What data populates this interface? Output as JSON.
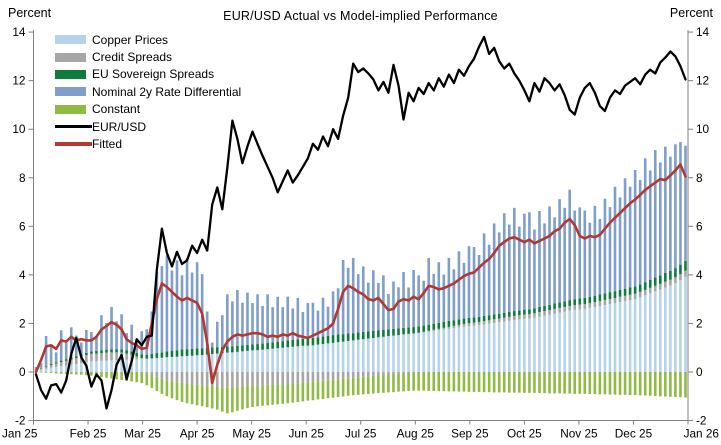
{
  "page": {
    "unit_label_left": "Percent",
    "unit_label_right": "Percent"
  },
  "chart_data": {
    "type": "bar",
    "subtype": "stacked-contribution-bars-with-line-overlays",
    "title": "EUR/USD Actual vs Model-implied Performance",
    "grid": false,
    "background": "#ffffff",
    "axis_color": "#808080",
    "y_axis": {
      "label": "Percent",
      "min": -2,
      "max": 14,
      "ticks": [
        14,
        12,
        10,
        8,
        6,
        4,
        2,
        0,
        -2
      ],
      "mirrored_right": true
    },
    "x_axis": {
      "tick_labels": [
        "Jan 25",
        "Feb 25",
        "Mar 25",
        "Apr 25",
        "May 25",
        "Jun 25",
        "Jul 25",
        "Aug 25",
        "Sep 25",
        "Oct 25",
        "Nov 25",
        "Dec 25",
        "Jan 26"
      ]
    },
    "legend": {
      "position": "top-left-inside",
      "items": [
        {
          "label": "Copper Prices",
          "color": "#b5d3ea",
          "type": "bar"
        },
        {
          "label": "Credit Spreads",
          "color": "#a6a6a6",
          "type": "bar"
        },
        {
          "label": "EU Sovereign Spreads",
          "color": "#0f7b3c",
          "type": "bar"
        },
        {
          "label": "Nominal 2y Rate Differential",
          "color": "#7f9ec9",
          "type": "bar"
        },
        {
          "label": "Constant",
          "color": "#8fbb44",
          "type": "bar"
        },
        {
          "label": "EUR/USD",
          "color": "#000000",
          "type": "line"
        },
        {
          "label": "Fitted",
          "color": "#b23931",
          "type": "line"
        }
      ]
    },
    "bar_series": [
      {
        "name": "Copper Prices",
        "color": "#b5d3ea",
        "values": [
          0.05,
          0.1,
          0.14,
          0.18,
          0.21,
          0.24,
          0.27,
          0.3,
          0.33,
          0.37,
          0.41,
          0.45,
          0.45,
          0.46,
          0.47,
          0.48,
          0.49,
          0.5,
          0.5,
          0.51,
          0.52,
          0.54,
          0.55,
          0.56,
          0.58,
          0.59,
          0.61,
          0.62,
          0.63,
          0.65,
          0.66,
          0.67,
          0.69,
          0.7,
          0.72,
          0.74,
          0.76,
          0.78,
          0.8,
          0.81,
          0.83,
          0.85,
          0.87,
          0.89,
          0.9,
          0.92,
          0.94,
          0.96,
          0.98,
          1.0,
          1.02,
          1.04,
          1.06,
          1.08,
          1.09,
          1.1,
          1.13,
          1.15,
          1.18,
          1.2,
          1.23,
          1.25,
          1.28,
          1.3,
          1.33,
          1.35,
          1.38,
          1.4,
          1.43,
          1.45,
          1.48,
          1.5,
          1.52,
          1.55,
          1.57,
          1.59,
          1.6,
          1.63,
          1.66,
          1.69,
          1.72,
          1.75,
          1.78,
          1.81,
          1.84,
          1.87,
          1.89,
          1.9,
          1.93,
          1.96,
          1.99,
          2.02,
          2.05,
          2.08,
          2.11,
          2.14,
          2.17,
          2.19,
          2.2,
          2.24,
          2.28,
          2.32,
          2.36,
          2.4,
          2.44,
          2.48,
          2.52,
          2.56,
          2.58,
          2.6,
          2.64,
          2.68,
          2.72,
          2.76,
          2.8,
          2.84,
          2.88,
          2.92,
          2.96,
          3.0,
          3.08,
          3.16,
          3.24,
          3.32,
          3.4,
          3.48,
          3.56,
          3.66,
          3.78,
          3.92
        ]
      },
      {
        "name": "Credit Spreads",
        "color": "#a6a6a6",
        "values": [
          0.02,
          0.05,
          0.08,
          0.11,
          0.14,
          0.17,
          0.19,
          0.22,
          0.24,
          0.26,
          0.28,
          0.3,
          0.31,
          0.32,
          0.33,
          0.33,
          0.32,
          0.3,
          0.26,
          0.2,
          0.12,
          0.04,
          -0.05,
          -0.12,
          -0.2,
          -0.28,
          -0.34,
          -0.38,
          -0.42,
          -0.45,
          -0.48,
          -0.5,
          -0.52,
          -0.54,
          -0.56,
          -0.58,
          -0.6,
          -0.63,
          -0.65,
          -0.64,
          -0.62,
          -0.6,
          -0.58,
          -0.56,
          -0.55,
          -0.54,
          -0.53,
          -0.52,
          -0.51,
          -0.5,
          -0.49,
          -0.47,
          -0.46,
          -0.44,
          -0.42,
          -0.4,
          -0.38,
          -0.36,
          -0.34,
          -0.32,
          -0.3,
          -0.28,
          -0.26,
          -0.24,
          -0.22,
          -0.2,
          -0.18,
          -0.16,
          -0.14,
          -0.12,
          -0.1,
          -0.08,
          -0.06,
          -0.04,
          -0.02,
          0.0,
          0.02,
          0.03,
          0.04,
          0.05,
          0.06,
          0.07,
          0.08,
          0.09,
          0.1,
          0.11,
          0.12,
          0.13,
          0.13,
          0.14,
          0.14,
          0.15,
          0.15,
          0.16,
          0.16,
          0.17,
          0.17,
          0.18,
          0.18,
          0.18,
          0.19,
          0.19,
          0.19,
          0.2,
          0.2,
          0.2,
          0.2,
          0.2,
          0.2,
          0.2,
          0.2,
          0.2,
          0.21,
          0.21,
          0.21,
          0.21,
          0.22,
          0.22,
          0.22,
          0.22,
          0.22,
          0.22,
          0.23,
          0.23,
          0.23,
          0.24,
          0.24,
          0.24,
          0.25,
          0.25
        ]
      },
      {
        "name": "EU Sovereign Spreads",
        "color": "#0f7b3c",
        "values": [
          0.01,
          0.02,
          0.03,
          0.04,
          0.05,
          0.06,
          0.07,
          0.08,
          0.08,
          0.09,
          0.1,
          0.1,
          0.11,
          0.11,
          0.12,
          0.12,
          0.13,
          0.13,
          0.14,
          0.14,
          0.15,
          0.15,
          0.16,
          0.18,
          0.2,
          0.22,
          0.24,
          0.26,
          0.27,
          0.28,
          0.28,
          0.28,
          0.28,
          0.28,
          0.27,
          0.27,
          0.26,
          0.26,
          0.25,
          0.25,
          0.25,
          0.25,
          0.25,
          0.25,
          0.25,
          0.25,
          0.26,
          0.26,
          0.27,
          0.27,
          0.28,
          0.28,
          0.29,
          0.29,
          0.3,
          0.3,
          0.3,
          0.31,
          0.31,
          0.32,
          0.32,
          0.31,
          0.31,
          0.3,
          0.3,
          0.3,
          0.3,
          0.29,
          0.29,
          0.28,
          0.28,
          0.28,
          0.27,
          0.27,
          0.26,
          0.26,
          0.26,
          0.25,
          0.25,
          0.25,
          0.24,
          0.24,
          0.24,
          0.23,
          0.23,
          0.22,
          0.22,
          0.22,
          0.21,
          0.21,
          0.21,
          0.2,
          0.2,
          0.2,
          0.2,
          0.2,
          0.2,
          0.2,
          0.2,
          0.2,
          0.21,
          0.21,
          0.22,
          0.22,
          0.23,
          0.23,
          0.24,
          0.24,
          0.25,
          0.25,
          0.26,
          0.26,
          0.27,
          0.27,
          0.28,
          0.28,
          0.29,
          0.29,
          0.3,
          0.3,
          0.31,
          0.32,
          0.33,
          0.34,
          0.35,
          0.36,
          0.37,
          0.38,
          0.39,
          0.4
        ]
      },
      {
        "name": "Nominal 2y Rate Differential",
        "color": "#7f9ec9",
        "values": [
          0.13,
          0.2,
          1.23,
          0.81,
          0.41,
          1.25,
          0.7,
          1.24,
          0.85,
          0.49,
          0.94,
          0.8,
          0.6,
          1.45,
          1.1,
          1.75,
          1.15,
          1.45,
          0.7,
          1.1,
          0.55,
          0.95,
          1.05,
          1.75,
          3.35,
          3.55,
          3.95,
          3.3,
          3.7,
          3.05,
          3.75,
          3.15,
          3.55,
          3.05,
          1.5,
          0.2,
          1.05,
          1.3,
          2.15,
          1.85,
          2.3,
          1.75,
          2.15,
          1.7,
          2.05,
          1.55,
          2.0,
          1.45,
          1.85,
          1.4,
          1.8,
          1.3,
          1.7,
          1.1,
          1.45,
          1.45,
          1.1,
          1.6,
          1.2,
          1.8,
          1.9,
          3.05,
          2.7,
          3.1,
          2.4,
          2.7,
          2.0,
          2.5,
          1.95,
          2.25,
          1.45,
          1.95,
          1.7,
          2.3,
          1.65,
          2.35,
          2.1,
          1.85,
          2.75,
          2.05,
          2.5,
          1.95,
          2.6,
          2.1,
          2.8,
          2.3,
          2.95,
          2.9,
          2.55,
          3.4,
          2.9,
          3.75,
          3.35,
          4.1,
          3.6,
          4.25,
          3.45,
          3.95,
          4.0,
          3.25,
          3.95,
          3.4,
          4.05,
          3.55,
          4.25,
          3.85,
          4.55,
          3.65,
          3.75,
          3.6,
          3.05,
          3.7,
          3.1,
          3.9,
          3.5,
          4.3,
          3.8,
          4.55,
          4.15,
          4.8,
          4.3,
          5.1,
          4.5,
          5.25,
          4.65,
          5.2,
          4.7,
          5.1,
          5.05,
          4.75
        ]
      },
      {
        "name": "Constant",
        "color": "#8fbb44",
        "values": [
          -0.01,
          -0.02,
          -0.03,
          -0.04,
          -0.06,
          -0.07,
          -0.08,
          -0.09,
          -0.1,
          -0.11,
          -0.13,
          -0.15,
          -0.18,
          -0.21,
          -0.24,
          -0.27,
          -0.3,
          -0.33,
          -0.36,
          -0.39,
          -0.42,
          -0.46,
          -0.5,
          -0.54,
          -0.58,
          -0.62,
          -0.66,
          -0.7,
          -0.74,
          -0.78,
          -0.81,
          -0.83,
          -0.85,
          -0.87,
          -0.89,
          -0.92,
          -0.95,
          -1.0,
          -1.05,
          -1.02,
          -0.98,
          -0.94,
          -0.9,
          -0.88,
          -0.86,
          -0.85,
          -0.84,
          -0.83,
          -0.82,
          -0.81,
          -0.8,
          -0.79,
          -0.78,
          -0.77,
          -0.76,
          -0.76,
          -0.75,
          -0.75,
          -0.74,
          -0.74,
          -0.73,
          -0.73,
          -0.72,
          -0.72,
          -0.72,
          -0.72,
          -0.72,
          -0.73,
          -0.73,
          -0.74,
          -0.74,
          -0.75,
          -0.75,
          -0.76,
          -0.76,
          -0.77,
          -0.77,
          -0.77,
          -0.78,
          -0.78,
          -0.79,
          -0.79,
          -0.8,
          -0.8,
          -0.81,
          -0.81,
          -0.82,
          -0.82,
          -0.82,
          -0.83,
          -0.83,
          -0.84,
          -0.84,
          -0.84,
          -0.85,
          -0.85,
          -0.85,
          -0.86,
          -0.86,
          -0.86,
          -0.87,
          -0.87,
          -0.88,
          -0.88,
          -0.88,
          -0.89,
          -0.89,
          -0.9,
          -0.9,
          -0.9,
          -0.91,
          -0.91,
          -0.92,
          -0.92,
          -0.93,
          -0.93,
          -0.94,
          -0.94,
          -0.95,
          -0.95,
          -0.96,
          -0.97,
          -0.98,
          -0.99,
          -1.0,
          -1.01,
          -1.02,
          -1.03,
          -1.04,
          -1.05
        ]
      }
    ],
    "line_series": [
      {
        "name": "Fitted",
        "color": "#b23931",
        "stroke_width": 2.6,
        "values": [
          0.0,
          0.5,
          1.05,
          1.1,
          0.95,
          1.3,
          1.25,
          1.45,
          1.3,
          1.35,
          1.3,
          1.3,
          1.45,
          1.75,
          1.9,
          2.05,
          1.95,
          1.75,
          1.35,
          1.2,
          1.1,
          0.95,
          1.0,
          2.0,
          3.0,
          3.65,
          3.5,
          3.3,
          3.1,
          2.95,
          3.05,
          2.95,
          2.85,
          2.4,
          1.2,
          -0.45,
          0.3,
          0.9,
          1.25,
          1.45,
          1.55,
          1.5,
          1.55,
          1.6,
          1.6,
          1.55,
          1.45,
          1.5,
          1.45,
          1.55,
          1.5,
          1.6,
          1.5,
          1.45,
          1.4,
          1.5,
          1.6,
          1.7,
          1.8,
          2.0,
          2.6,
          3.3,
          3.55,
          3.45,
          3.3,
          3.2,
          3.0,
          2.95,
          3.05,
          2.8,
          2.55,
          2.6,
          2.9,
          3.0,
          2.95,
          3.1,
          3.0,
          3.25,
          3.55,
          3.5,
          3.4,
          3.45,
          3.55,
          3.65,
          3.8,
          3.95,
          4.05,
          4.1,
          4.3,
          4.5,
          4.65,
          4.9,
          5.2,
          5.35,
          5.5,
          5.55,
          5.45,
          5.35,
          5.45,
          5.3,
          5.4,
          5.5,
          5.6,
          5.8,
          5.9,
          6.15,
          6.3,
          6.05,
          5.6,
          5.5,
          5.6,
          5.55,
          5.65,
          5.9,
          6.15,
          6.35,
          6.55,
          6.75,
          6.95,
          7.1,
          7.3,
          7.5,
          7.65,
          7.8,
          7.95,
          7.9,
          8.1,
          8.3,
          8.55,
          8.05
        ]
      },
      {
        "name": "EUR/USD",
        "color": "#000000",
        "stroke_width": 2.3,
        "values": [
          -0.1,
          -0.75,
          -1.1,
          -0.55,
          -0.5,
          -0.85,
          -0.35,
          0.75,
          1.4,
          0.6,
          0.25,
          -0.6,
          -0.1,
          -0.35,
          -1.5,
          -0.75,
          0.3,
          0.7,
          -0.3,
          0.45,
          1.35,
          1.1,
          1.45,
          1.5,
          4.2,
          5.9,
          4.9,
          4.35,
          4.95,
          4.45,
          4.6,
          5.2,
          4.9,
          5.45,
          5.0,
          6.9,
          7.6,
          6.7,
          8.4,
          10.35,
          9.6,
          8.6,
          9.3,
          9.9,
          9.4,
          8.9,
          8.45,
          8.0,
          7.4,
          7.85,
          8.3,
          7.8,
          8.1,
          8.45,
          8.8,
          9.4,
          9.15,
          9.7,
          9.3,
          10.0,
          9.6,
          10.55,
          11.3,
          12.7,
          12.35,
          12.5,
          12.3,
          12.05,
          11.6,
          11.95,
          11.5,
          12.65,
          11.8,
          10.4,
          11.5,
          11.15,
          11.7,
          11.45,
          11.9,
          11.6,
          12.1,
          11.75,
          12.25,
          11.9,
          12.45,
          12.2,
          12.6,
          12.9,
          13.4,
          13.8,
          13.1,
          13.35,
          12.8,
          12.5,
          12.7,
          12.3,
          12.0,
          11.6,
          11.15,
          11.9,
          11.55,
          12.1,
          11.9,
          11.6,
          11.85,
          11.4,
          10.8,
          10.6,
          11.3,
          11.7,
          11.9,
          11.5,
          10.95,
          10.75,
          11.3,
          11.6,
          11.45,
          11.8,
          11.95,
          12.1,
          11.85,
          12.25,
          12.45,
          12.3,
          12.75,
          12.95,
          13.2,
          13.0,
          12.6,
          12.05
        ]
      }
    ]
  }
}
